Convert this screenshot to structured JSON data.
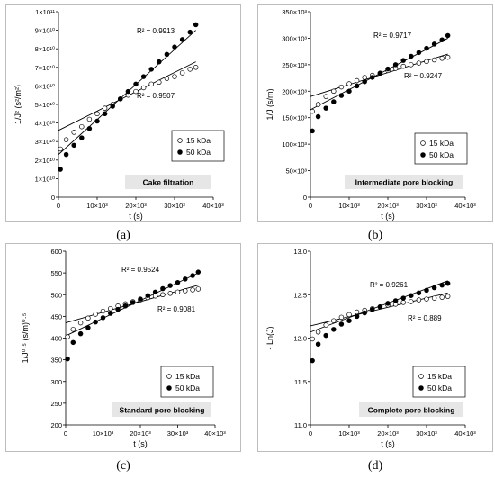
{
  "captions": [
    "(a)",
    "(b)",
    "(c)",
    "(d)"
  ],
  "chart_data": [
    {
      "type": "scatter",
      "title": "",
      "annotation": "Cake filtration",
      "xlabel": "t (s)",
      "ylabel": "1/J²    (s²/m²)",
      "xlim": [
        0,
        40000
      ],
      "ylim": [
        0,
        100000000000.0
      ],
      "x_ticks": [
        "0",
        "10×10³",
        "20×10³",
        "30×10³",
        "40×10³"
      ],
      "y_ticks": [
        "0",
        "1×10¹⁰",
        "2×10¹⁰",
        "3×10¹⁰",
        "4×10¹⁰",
        "5×10¹⁰",
        "6×10¹⁰",
        "7×10¹⁰",
        "8×10¹⁰",
        "9×10¹⁰",
        "1×10¹¹"
      ],
      "legend_position": "right-middle",
      "series": [
        {
          "name": "15 kDa",
          "marker": "open-circle",
          "x": [
            500,
            2000,
            4000,
            6000,
            8000,
            10000,
            12000,
            14000,
            16000,
            18000,
            20000,
            22000,
            24000,
            26000,
            28000,
            30000,
            32000,
            34000,
            35500
          ],
          "y": [
            26000000000.0,
            31000000000.0,
            35000000000.0,
            38000000000.0,
            42000000000.0,
            45000000000.0,
            48000000000.0,
            50000000000.0,
            53000000000.0,
            55000000000.0,
            57000000000.0,
            59000000000.0,
            61000000000.0,
            62000000000.0,
            64000000000.0,
            65000000000.0,
            67000000000.0,
            69000000000.0,
            70000000000.0
          ],
          "fit": {
            "x": [
              0,
              35500
            ],
            "y": [
              36000000000.0,
              73000000000.0
            ],
            "r2_label": "R² = 0.9507"
          }
        },
        {
          "name": "50 kDa",
          "marker": "filled-circle",
          "x": [
            500,
            2000,
            4000,
            6000,
            8000,
            10000,
            12000,
            14000,
            16000,
            18000,
            20000,
            22000,
            24000,
            26000,
            28000,
            30000,
            32000,
            34000,
            35500
          ],
          "y": [
            15000000000.0,
            23000000000.0,
            28000000000.0,
            32000000000.0,
            37000000000.0,
            41000000000.0,
            45000000000.0,
            49000000000.0,
            53000000000.0,
            57000000000.0,
            61000000000.0,
            65000000000.0,
            69000000000.0,
            73000000000.0,
            77000000000.0,
            81000000000.0,
            85000000000.0,
            89000000000.0,
            93000000000.0
          ],
          "fit": {
            "x": [
              0,
              35500
            ],
            "y": [
              23000000000.0,
              90000000000.0
            ],
            "r2_label": "R² = 0.9913"
          }
        }
      ]
    },
    {
      "type": "scatter",
      "title": "",
      "annotation": "Intermediate pore blocking",
      "xlabel": "t (s)",
      "ylabel": "1/J    (s/m)",
      "xlim": [
        0,
        40000
      ],
      "ylim": [
        0,
        350000
      ],
      "x_ticks": [
        "0",
        "10×10³",
        "20×10³",
        "30×10³",
        "40×10³"
      ],
      "y_ticks": [
        "0",
        "50×10³",
        "100×10³",
        "150×10³",
        "200×10³",
        "250×10³",
        "300×10³",
        "350×10³"
      ],
      "legend_position": "right-middle",
      "series": [
        {
          "name": "15 kDa",
          "marker": "open-circle",
          "x": [
            500,
            2000,
            4000,
            6000,
            8000,
            10000,
            12000,
            14000,
            16000,
            18000,
            20000,
            22000,
            24000,
            26000,
            28000,
            30000,
            32000,
            34000,
            35500
          ],
          "y": [
            162000,
            175000,
            190000,
            200000,
            208000,
            214000,
            220000,
            226000,
            230000,
            234000,
            239000,
            243000,
            247000,
            250000,
            253000,
            256000,
            259000,
            262000,
            264000
          ],
          "fit": {
            "x": [
              0,
              35500
            ],
            "y": [
              190000,
              270000
            ],
            "r2_label": "R² = 0.9247"
          }
        },
        {
          "name": "50 kDa",
          "marker": "filled-circle",
          "x": [
            500,
            2000,
            4000,
            6000,
            8000,
            10000,
            12000,
            14000,
            16000,
            18000,
            20000,
            22000,
            24000,
            26000,
            28000,
            30000,
            32000,
            34000,
            35500
          ],
          "y": [
            125000,
            152000,
            168000,
            180000,
            192000,
            200000,
            210000,
            218000,
            226000,
            234000,
            242000,
            250000,
            258000,
            266000,
            273000,
            281000,
            289000,
            297000,
            305000
          ],
          "fit": {
            "x": [
              0,
              35500
            ],
            "y": [
              165000,
              300000
            ],
            "r2_label": "R² = 0.9717"
          }
        }
      ]
    },
    {
      "type": "scatter",
      "title": "",
      "annotation": "Standard pore blocking",
      "xlabel": "t (s)",
      "ylabel": "1/J⁰·⁵    (s/m)⁰·⁵",
      "xlim": [
        0,
        40000
      ],
      "ylim": [
        200,
        600
      ],
      "x_ticks": [
        "0",
        "10×10³",
        "20×10³",
        "30×10³",
        "40×10³"
      ],
      "y_ticks": [
        "200",
        "250",
        "300",
        "350",
        "400",
        "450",
        "500",
        "550",
        "600"
      ],
      "legend_position": "right-middle",
      "series": [
        {
          "name": "15 kDa",
          "marker": "open-circle",
          "x": [
            500,
            2000,
            4000,
            6000,
            8000,
            10000,
            12000,
            14000,
            16000,
            18000,
            20000,
            22000,
            24000,
            26000,
            28000,
            30000,
            32000,
            34000,
            35500
          ],
          "y": [
            403,
            420,
            435,
            446,
            455,
            462,
            468,
            474,
            479,
            484,
            488,
            493,
            497,
            500,
            503,
            506,
            509,
            511,
            513
          ],
          "fit": {
            "x": [
              0,
              35500
            ],
            "y": [
              435,
              522
            ],
            "r2_label": "R² = 0.9081"
          }
        },
        {
          "name": "50 kDa",
          "marker": "filled-circle",
          "x": [
            500,
            2000,
            4000,
            6000,
            8000,
            10000,
            12000,
            14000,
            16000,
            18000,
            20000,
            22000,
            24000,
            26000,
            28000,
            30000,
            32000,
            34000,
            35500
          ],
          "y": [
            352,
            390,
            410,
            424,
            437,
            447,
            457,
            466,
            474,
            482,
            490,
            498,
            506,
            514,
            521,
            528,
            536,
            544,
            552
          ],
          "fit": {
            "x": [
              0,
              35500
            ],
            "y": [
              405,
              550
            ],
            "r2_label": "R² = 0.9524"
          }
        }
      ]
    },
    {
      "type": "scatter",
      "title": "",
      "annotation": "Complete pore blocking",
      "xlabel": "t (s)",
      "ylabel": "- Ln(J)",
      "xlim": [
        0,
        40000
      ],
      "ylim": [
        11.0,
        13.0
      ],
      "x_ticks": [
        "0",
        "10×10³",
        "20×10³",
        "30×10³",
        "40×10³"
      ],
      "y_ticks": [
        "11.0",
        "11.5",
        "12.0",
        "12.5",
        "13.0"
      ],
      "legend_position": "right-middle",
      "series": [
        {
          "name": "15 kDa",
          "marker": "open-circle",
          "x": [
            500,
            2000,
            4000,
            6000,
            8000,
            10000,
            12000,
            14000,
            16000,
            18000,
            20000,
            22000,
            24000,
            26000,
            28000,
            30000,
            32000,
            34000,
            35500
          ],
          "y": [
            11.99,
            12.07,
            12.15,
            12.2,
            12.24,
            12.27,
            12.3,
            12.32,
            12.34,
            12.36,
            12.38,
            12.39,
            12.41,
            12.42,
            12.44,
            12.45,
            12.46,
            12.47,
            12.48
          ],
          "fit": {
            "x": [
              0,
              35500
            ],
            "y": [
              12.14,
              12.52
            ],
            "r2_label": "R² = 0.889"
          }
        },
        {
          "name": "50 kDa",
          "marker": "filled-circle",
          "x": [
            500,
            2000,
            4000,
            6000,
            8000,
            10000,
            12000,
            14000,
            16000,
            18000,
            20000,
            22000,
            24000,
            26000,
            28000,
            30000,
            32000,
            34000,
            35500
          ],
          "y": [
            11.74,
            11.93,
            12.03,
            12.1,
            12.16,
            12.2,
            12.25,
            12.29,
            12.33,
            12.36,
            12.4,
            12.43,
            12.46,
            12.49,
            12.52,
            12.55,
            12.58,
            12.61,
            12.63
          ],
          "fit": {
            "x": [
              0,
              35500
            ],
            "y": [
              12.07,
              12.66
            ],
            "r2_label": "R² = 0.9261"
          }
        }
      ]
    }
  ]
}
